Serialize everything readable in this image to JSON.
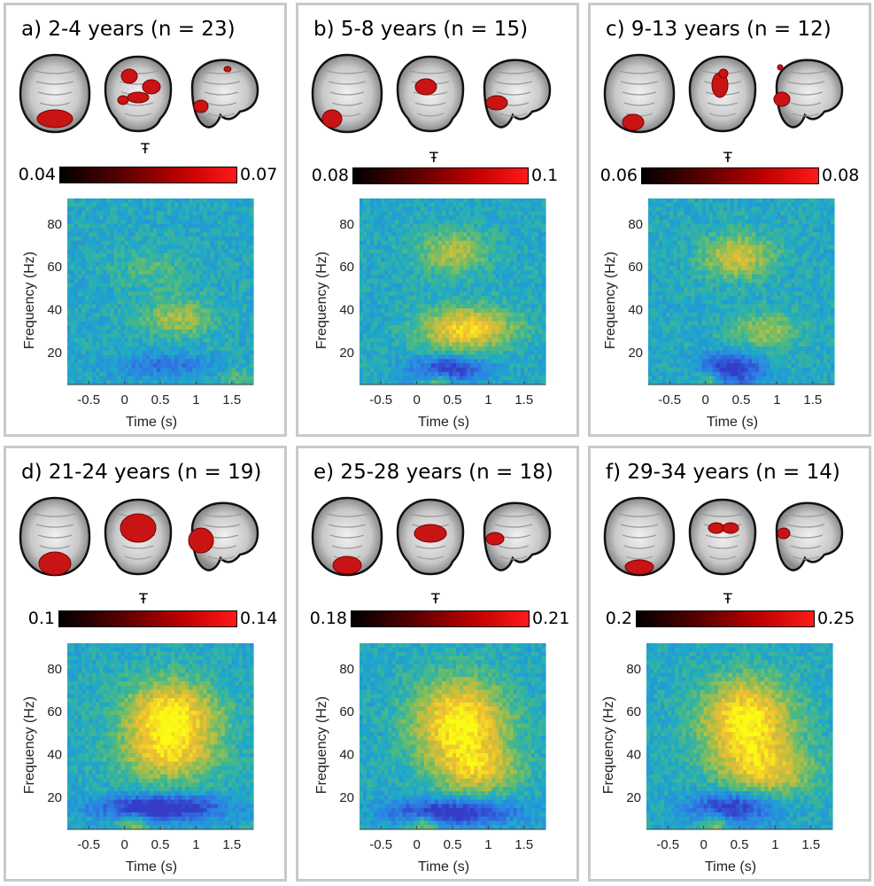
{
  "colors": {
    "panel_border": "#c9c9c9",
    "blob": "#d11a1a",
    "cbar_high": "#ff1a1a",
    "cbar_low": "#000000"
  },
  "chart_data": [
    {
      "type": "heatmap",
      "title": "a) 2-4 years (n = 23)",
      "colorbar": {
        "min": "0.04",
        "max": "0.07"
      },
      "xlabel": "Time (s)",
      "ylabel": "Frequency (Hz)",
      "xlim": [
        -0.8,
        1.8
      ],
      "ylim": [
        5,
        92
      ],
      "xticks": [
        "-0.5",
        "0",
        "0.5",
        "1",
        "1.5"
      ],
      "yticks": [
        "20",
        "40",
        "60",
        "80"
      ],
      "blobs": [
        {
          "t": 0.75,
          "f": 36,
          "st": 0.35,
          "sf": 6,
          "a": 0.55
        },
        {
          "t": 0.4,
          "f": 58,
          "st": 0.35,
          "sf": 8,
          "a": 0.25
        },
        {
          "t": 0.55,
          "f": 14,
          "st": 0.5,
          "sf": 4,
          "a": -0.45
        },
        {
          "t": 1.6,
          "f": 8,
          "st": 0.2,
          "sf": 4,
          "a": 0.3
        }
      ]
    },
    {
      "type": "heatmap",
      "title": "b) 5-8 years (n = 15)",
      "colorbar": {
        "min": "0.08",
        "max": "0.1"
      },
      "xlabel": "Time (s)",
      "ylabel": "Frequency (Hz)",
      "xlim": [
        -0.8,
        1.8
      ],
      "ylim": [
        5,
        92
      ],
      "xticks": [
        "-0.5",
        "0",
        "0.5",
        "1",
        "1.5"
      ],
      "yticks": [
        "20",
        "40",
        "60",
        "80"
      ],
      "blobs": [
        {
          "t": 0.7,
          "f": 31,
          "st": 0.45,
          "sf": 7,
          "a": 1.0
        },
        {
          "t": 0.5,
          "f": 67,
          "st": 0.35,
          "sf": 7,
          "a": 0.6
        },
        {
          "t": 0.45,
          "f": 12,
          "st": 0.35,
          "sf": 4,
          "a": -0.9
        },
        {
          "t": 0.3,
          "f": 7,
          "st": 0.15,
          "sf": 3,
          "a": 0.5
        }
      ]
    },
    {
      "type": "heatmap",
      "title": "c) 9-13 years (n = 12)",
      "colorbar": {
        "min": "0.06",
        "max": "0.08"
      },
      "xlabel": "Time (s)",
      "ylabel": "Frequency (Hz)",
      "xlim": [
        -0.8,
        1.8
      ],
      "ylim": [
        5,
        92
      ],
      "xticks": [
        "-0.5",
        "0",
        "0.5",
        "1",
        "1.5"
      ],
      "yticks": [
        "20",
        "40",
        "60",
        "80"
      ],
      "blobs": [
        {
          "t": 0.45,
          "f": 65,
          "st": 0.35,
          "sf": 7,
          "a": 0.75
        },
        {
          "t": 0.85,
          "f": 30,
          "st": 0.35,
          "sf": 6,
          "a": 0.5
        },
        {
          "t": 0.35,
          "f": 12,
          "st": 0.3,
          "sf": 5,
          "a": -1.0
        },
        {
          "t": 0.05,
          "f": 8,
          "st": 0.15,
          "sf": 3,
          "a": 0.6
        }
      ]
    },
    {
      "type": "heatmap",
      "title": "d) 21-24 years (n = 19)",
      "colorbar": {
        "min": "0.1",
        "max": "0.14"
      },
      "xlabel": "Time (s)",
      "ylabel": "Frequency (Hz)",
      "xlim": [
        -0.8,
        1.8
      ],
      "ylim": [
        5,
        92
      ],
      "xticks": [
        "-0.5",
        "0",
        "0.5",
        "1",
        "1.5"
      ],
      "yticks": [
        "20",
        "40",
        "60",
        "80"
      ],
      "blobs": [
        {
          "t": 0.65,
          "f": 57,
          "st": 0.45,
          "sf": 12,
          "a": 1.2
        },
        {
          "t": 0.6,
          "f": 38,
          "st": 0.5,
          "sf": 8,
          "a": 0.6
        },
        {
          "t": 0.5,
          "f": 15,
          "st": 0.6,
          "sf": 4,
          "a": -1.1
        },
        {
          "t": 0.1,
          "f": 8,
          "st": 0.15,
          "sf": 3,
          "a": 0.6
        }
      ]
    },
    {
      "type": "heatmap",
      "title": "e) 25-28 years (n = 18)",
      "colorbar": {
        "min": "0.18",
        "max": "0.21"
      },
      "xlabel": "Time (s)",
      "ylabel": "Frequency (Hz)",
      "xlim": [
        -0.8,
        1.8
      ],
      "ylim": [
        5,
        92
      ],
      "xticks": [
        "-0.5",
        "0",
        "0.5",
        "1",
        "1.5"
      ],
      "yticks": [
        "20",
        "40",
        "60",
        "80"
      ],
      "blobs": [
        {
          "t": 0.6,
          "f": 55,
          "st": 0.45,
          "sf": 14,
          "a": 1.2
        },
        {
          "t": 0.85,
          "f": 33,
          "st": 0.4,
          "sf": 8,
          "a": 0.7
        },
        {
          "t": 0.5,
          "f": 13,
          "st": 0.6,
          "sf": 4,
          "a": -1.0
        },
        {
          "t": 0.1,
          "f": 8,
          "st": 0.15,
          "sf": 3,
          "a": 0.6
        }
      ]
    },
    {
      "type": "heatmap",
      "title": "f) 29-34 years (n = 14)",
      "colorbar": {
        "min": "0.2",
        "max": "0.25"
      },
      "xlabel": "Time (s)",
      "ylabel": "Frequency (Hz)",
      "xlim": [
        -0.8,
        1.8
      ],
      "ylim": [
        5,
        92
      ],
      "xticks": [
        "-0.5",
        "0",
        "0.5",
        "1",
        "1.5"
      ],
      "yticks": [
        "20",
        "40",
        "60",
        "80"
      ],
      "blobs": [
        {
          "t": 0.6,
          "f": 55,
          "st": 0.45,
          "sf": 14,
          "a": 1.2
        },
        {
          "t": 0.9,
          "f": 32,
          "st": 0.45,
          "sf": 8,
          "a": 0.7
        },
        {
          "t": 0.4,
          "f": 15,
          "st": 0.4,
          "sf": 5,
          "a": -0.9
        },
        {
          "t": 0.15,
          "f": 8,
          "st": 0.15,
          "sf": 3,
          "a": 0.6
        }
      ]
    }
  ]
}
